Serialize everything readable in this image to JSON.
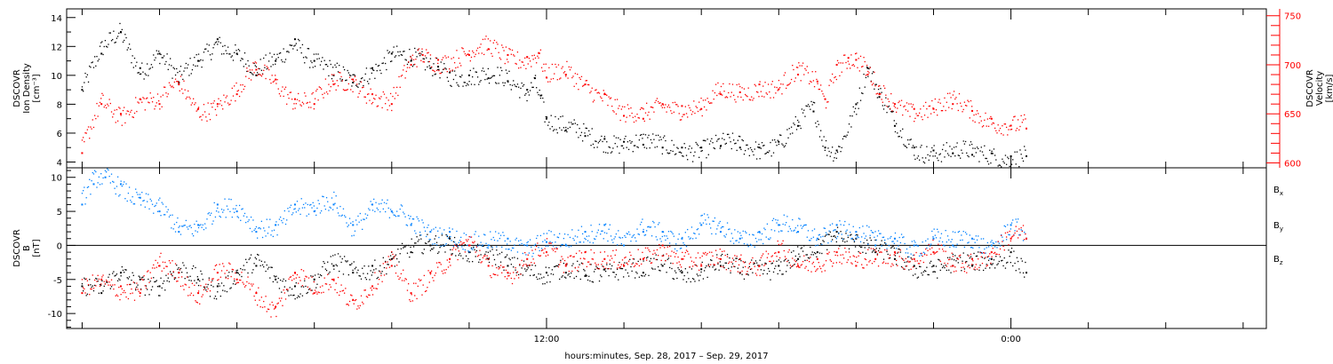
{
  "caption": "hours:minutes, Sep. 28, 2017 – Sep. 29, 2017",
  "chart_data": [
    {
      "type": "scatter",
      "panel": "plasma",
      "left_axis": {
        "label_lines": [
          "DSCOVR",
          "Ion Density",
          "[cm⁻³]"
        ],
        "ticks": [
          4,
          6,
          8,
          10,
          12,
          14
        ],
        "ylim": [
          3.6,
          14.6
        ],
        "color": "#000000"
      },
      "right_axis": {
        "label_lines": [
          "DSCOVR",
          "Velocity",
          "[km/s]"
        ],
        "ticks": [
          600,
          650,
          700,
          750
        ],
        "ylim": [
          595,
          757
        ],
        "color": "#ff0000"
      },
      "series": [
        {
          "key": "density",
          "axis": "left",
          "color": "#000000",
          "points": [
            [
              0.0,
              9.0
            ],
            [
              0.5,
              11.5
            ],
            [
              1.0,
              13.0
            ],
            [
              1.5,
              10.5
            ],
            [
              2.0,
              11.5
            ],
            [
              2.5,
              9.5
            ],
            [
              3.0,
              11.0
            ],
            [
              3.5,
              12.5
            ],
            [
              4.0,
              11.5
            ],
            [
              4.5,
              10.0
            ],
            [
              5.0,
              11.0
            ],
            [
              5.5,
              12.5
            ],
            [
              6.0,
              11.0
            ],
            [
              6.5,
              10.0
            ],
            [
              7.0,
              9.5
            ],
            [
              7.5,
              10.5
            ],
            [
              8.0,
              11.5
            ],
            [
              8.5,
              11.0
            ],
            [
              9.0,
              10.5
            ],
            [
              9.2,
              10.6
            ],
            [
              9.5,
              10.2
            ],
            [
              10.0,
              10.0
            ],
            [
              10.5,
              9.8
            ],
            [
              11.0,
              9.6
            ],
            [
              11.5,
              9.0
            ],
            [
              11.7,
              9.8
            ],
            [
              11.85,
              8.6
            ],
            [
              12.0,
              7.0
            ],
            [
              12.5,
              6.2
            ],
            [
              13.0,
              5.8
            ],
            [
              13.5,
              5.6
            ],
            [
              14.0,
              5.4
            ],
            [
              14.5,
              5.2
            ],
            [
              15.0,
              5.0
            ],
            [
              15.5,
              5.0
            ],
            [
              16.0,
              5.0
            ],
            [
              16.5,
              5.1
            ],
            [
              17.0,
              5.0
            ],
            [
              17.5,
              5.0
            ],
            [
              18.0,
              5.4
            ],
            [
              18.5,
              6.5
            ],
            [
              18.9,
              7.5
            ],
            [
              19.2,
              5.0
            ],
            [
              19.5,
              4.8
            ],
            [
              20.0,
              8.0
            ],
            [
              20.3,
              10.5
            ],
            [
              20.6,
              8.5
            ],
            [
              21.0,
              6.5
            ],
            [
              21.5,
              5.0
            ],
            [
              22.0,
              4.8
            ],
            [
              22.5,
              4.6
            ],
            [
              23.0,
              4.5
            ],
            [
              23.5,
              4.6
            ],
            [
              24.0,
              4.4
            ],
            [
              24.4,
              4.4
            ]
          ]
        },
        {
          "key": "velocity",
          "axis": "right",
          "color": "#ff0000",
          "points": [
            [
              0.0,
              610
            ],
            [
              0.5,
              660
            ],
            [
              1.0,
              650
            ],
            [
              1.5,
              665
            ],
            [
              2.0,
              660
            ],
            [
              2.5,
              680
            ],
            [
              3.0,
              655
            ],
            [
              3.5,
              660
            ],
            [
              4.0,
              670
            ],
            [
              4.5,
              695
            ],
            [
              5.0,
              685
            ],
            [
              5.5,
              665
            ],
            [
              6.0,
              660
            ],
            [
              6.5,
              680
            ],
            [
              7.0,
              685
            ],
            [
              7.5,
              670
            ],
            [
              8.0,
              660
            ],
            [
              8.5,
              700
            ],
            [
              8.8,
              710
            ],
            [
              9.2,
              705
            ],
            [
              10.0,
              710
            ],
            [
              10.5,
              716
            ],
            [
              11.0,
              710
            ],
            [
              11.5,
              708
            ],
            [
              11.8,
              712
            ],
            [
              12.0,
              687
            ],
            [
              12.5,
              690
            ],
            [
              13.0,
              680
            ],
            [
              13.5,
              670
            ],
            [
              14.0,
              648
            ],
            [
              14.5,
              645
            ],
            [
              15.0,
              660
            ],
            [
              15.5,
              658
            ],
            [
              16.0,
              655
            ],
            [
              16.5,
              670
            ],
            [
              17.0,
              672
            ],
            [
              17.5,
              680
            ],
            [
              18.0,
              675
            ],
            [
              18.5,
              690
            ],
            [
              19.0,
              683
            ],
            [
              19.2,
              665
            ],
            [
              19.5,
              700
            ],
            [
              19.8,
              707
            ],
            [
              20.0,
              705
            ],
            [
              20.3,
              690
            ],
            [
              20.6,
              670
            ],
            [
              21.0,
              660
            ],
            [
              21.5,
              655
            ],
            [
              22.0,
              655
            ],
            [
              22.5,
              660
            ],
            [
              23.0,
              653
            ],
            [
              23.5,
              645
            ],
            [
              24.0,
              638
            ],
            [
              24.4,
              635
            ]
          ]
        }
      ]
    },
    {
      "type": "scatter",
      "panel": "field",
      "left_axis": {
        "label_lines": [
          "DSCOVR",
          "B",
          "[nT]"
        ],
        "ticks": [
          -10,
          -5,
          0,
          5,
          10
        ],
        "ylim": [
          -12.2,
          11.4
        ],
        "color": "#000000"
      },
      "zero_line": true,
      "series": [
        {
          "key": "bx",
          "name": "B",
          "subscript": "x",
          "color": "#000000",
          "points": [
            [
              0.0,
              -6
            ],
            [
              0.5,
              -7
            ],
            [
              1.0,
              -4
            ],
            [
              1.5,
              -5
            ],
            [
              2.0,
              -6
            ],
            [
              2.5,
              -4
            ],
            [
              3.0,
              -5
            ],
            [
              3.5,
              -6
            ],
            [
              4.0,
              -4
            ],
            [
              4.5,
              -3
            ],
            [
              5.0,
              -5
            ],
            [
              5.5,
              -6
            ],
            [
              6.0,
              -5
            ],
            [
              6.5,
              -3
            ],
            [
              7.0,
              -4
            ],
            [
              7.5,
              -3
            ],
            [
              8.0,
              -2
            ],
            [
              8.5,
              -1
            ],
            [
              9.0,
              0
            ],
            [
              9.5,
              1
            ],
            [
              10.0,
              -1
            ],
            [
              10.5,
              -2
            ],
            [
              11.0,
              -3
            ],
            [
              11.5,
              -3
            ],
            [
              12.0,
              -4
            ],
            [
              12.5,
              -4
            ],
            [
              13.0,
              -4.5
            ],
            [
              13.5,
              -3.5
            ],
            [
              14.0,
              -3
            ],
            [
              14.5,
              -4
            ],
            [
              15.0,
              -3
            ],
            [
              15.5,
              -4
            ],
            [
              16.0,
              -3.5
            ],
            [
              16.5,
              -3
            ],
            [
              17.0,
              -4
            ],
            [
              17.5,
              -3
            ],
            [
              18.0,
              -3
            ],
            [
              18.5,
              -2
            ],
            [
              19.0,
              -1
            ],
            [
              19.5,
              2
            ],
            [
              20.0,
              1
            ],
            [
              20.5,
              -1
            ],
            [
              21.0,
              -2
            ],
            [
              21.5,
              -3
            ],
            [
              22.0,
              -3
            ],
            [
              22.5,
              -3
            ],
            [
              23.0,
              -3
            ],
            [
              23.5,
              -2
            ],
            [
              24.0,
              -1
            ],
            [
              24.4,
              -4
            ]
          ]
        },
        {
          "key": "by",
          "name": "B",
          "subscript": "y",
          "color": "#0080ff",
          "points": [
            [
              0.0,
              6
            ],
            [
              0.3,
              9
            ],
            [
              0.6,
              10
            ],
            [
              1.0,
              9
            ],
            [
              1.5,
              7
            ],
            [
              2.0,
              5
            ],
            [
              2.5,
              2
            ],
            [
              3.0,
              3
            ],
            [
              3.5,
              6
            ],
            [
              4.0,
              5
            ],
            [
              4.5,
              2
            ],
            [
              5.0,
              3
            ],
            [
              5.5,
              6
            ],
            [
              6.0,
              5
            ],
            [
              6.5,
              6
            ],
            [
              7.0,
              3
            ],
            [
              7.5,
              6
            ],
            [
              8.0,
              5
            ],
            [
              8.5,
              3
            ],
            [
              9.0,
              2
            ],
            [
              9.5,
              2
            ],
            [
              10.0,
              0
            ],
            [
              10.5,
              0
            ],
            [
              11.0,
              1
            ],
            [
              11.5,
              0
            ],
            [
              12.0,
              0.5
            ],
            [
              12.5,
              0
            ],
            [
              13.0,
              2
            ],
            [
              13.5,
              3
            ],
            [
              14.0,
              0
            ],
            [
              14.5,
              2
            ],
            [
              15.0,
              2
            ],
            [
              15.5,
              1
            ],
            [
              16.0,
              3
            ],
            [
              16.5,
              2
            ],
            [
              17.0,
              1
            ],
            [
              17.5,
              2
            ],
            [
              18.0,
              3
            ],
            [
              18.5,
              2
            ],
            [
              19.0,
              1
            ],
            [
              19.5,
              3
            ],
            [
              20.0,
              2
            ],
            [
              20.5,
              0
            ],
            [
              21.0,
              1
            ],
            [
              21.5,
              0
            ],
            [
              22.0,
              1
            ],
            [
              22.5,
              0
            ],
            [
              23.0,
              1
            ],
            [
              23.5,
              0
            ],
            [
              24.0,
              3
            ],
            [
              24.4,
              1
            ]
          ]
        },
        {
          "key": "bz",
          "name": "B",
          "subscript": "z",
          "color": "#ff0000",
          "points": [
            [
              0.0,
              -7
            ],
            [
              0.5,
              -5
            ],
            [
              1.0,
              -6
            ],
            [
              1.5,
              -7
            ],
            [
              2.0,
              -3
            ],
            [
              2.5,
              -4
            ],
            [
              3.0,
              -7
            ],
            [
              3.5,
              -4
            ],
            [
              4.0,
              -5
            ],
            [
              4.5,
              -7
            ],
            [
              5.0,
              -9
            ],
            [
              5.5,
              -4
            ],
            [
              6.0,
              -7
            ],
            [
              6.5,
              -5
            ],
            [
              7.0,
              -8
            ],
            [
              7.5,
              -6
            ],
            [
              8.0,
              -3
            ],
            [
              8.5,
              -7
            ],
            [
              9.0,
              -4
            ],
            [
              9.5,
              -2
            ],
            [
              10.0,
              0
            ],
            [
              10.5,
              -3
            ],
            [
              11.0,
              -4
            ],
            [
              11.5,
              -2
            ],
            [
              12.0,
              -1
            ],
            [
              12.5,
              -3
            ],
            [
              13.0,
              -1
            ],
            [
              13.5,
              -2
            ],
            [
              14.0,
              -3
            ],
            [
              14.5,
              -2
            ],
            [
              15.0,
              0
            ],
            [
              15.5,
              -2
            ],
            [
              16.0,
              -3
            ],
            [
              16.5,
              -2
            ],
            [
              17.0,
              -2
            ],
            [
              17.5,
              -3
            ],
            [
              18.0,
              -1
            ],
            [
              18.5,
              -3
            ],
            [
              19.0,
              -2
            ],
            [
              19.5,
              -1
            ],
            [
              20.0,
              -3
            ],
            [
              20.5,
              -2
            ],
            [
              21.0,
              -1
            ],
            [
              21.5,
              -2
            ],
            [
              22.0,
              -1
            ],
            [
              22.5,
              -3
            ],
            [
              23.0,
              -2
            ],
            [
              23.5,
              -1
            ],
            [
              24.0,
              1
            ],
            [
              24.4,
              1
            ]
          ]
        }
      ]
    }
  ],
  "time_axis": {
    "xlim": [
      -0.4,
      30.6
    ],
    "labeled_ticks": [
      {
        "x": 12,
        "label": "12:00"
      },
      {
        "x": 24,
        "label": "0:00"
      }
    ],
    "minor_ticks": [
      0,
      2,
      4,
      6,
      8,
      10,
      12,
      14,
      16,
      18,
      20,
      22,
      24,
      26,
      28,
      30
    ]
  }
}
